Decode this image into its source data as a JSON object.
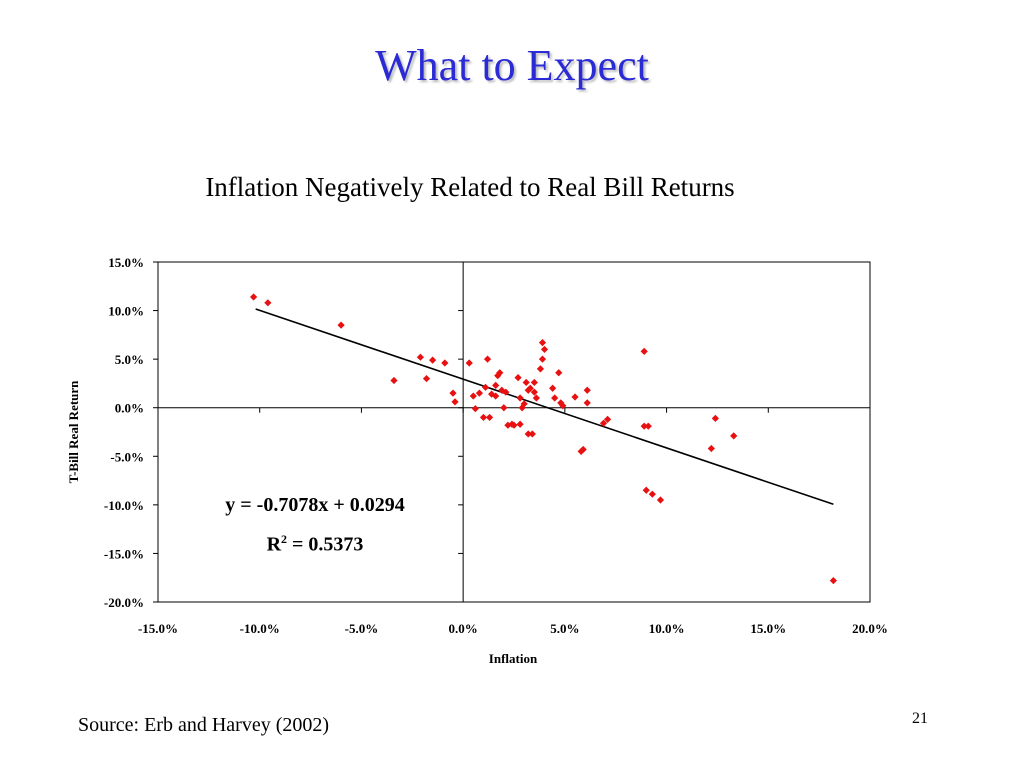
{
  "slide": {
    "title": "What to Expect",
    "source": "Source: Erb and Harvey (2002)",
    "page_number": "21"
  },
  "chart_data": {
    "type": "scatter",
    "title": "Inflation Negatively Related to Real Bill Returns",
    "xlabel": "Inflation",
    "ylabel": "T-Bill Real Return",
    "xlim": [
      -0.15,
      0.2
    ],
    "ylim": [
      -0.2,
      0.15
    ],
    "x_ticks": [
      -0.15,
      -0.1,
      -0.05,
      0.0,
      0.05,
      0.1,
      0.15,
      0.2
    ],
    "x_tick_labels": [
      "-15.0%",
      "-10.0%",
      "-5.0%",
      "0.0%",
      "5.0%",
      "10.0%",
      "15.0%",
      "20.0%"
    ],
    "y_ticks": [
      0.15,
      0.1,
      0.05,
      0.0,
      -0.05,
      -0.1,
      -0.15,
      -0.2
    ],
    "y_tick_labels": [
      "15.0%",
      "10.0%",
      "5.0%",
      "0.0%",
      "-5.0%",
      "-10.0%",
      "-15.0%",
      "-20.0%"
    ],
    "grid": false,
    "marker_color": "#e81010",
    "trendline": {
      "slope": -0.7078,
      "intercept": 0.0294,
      "x_range": [
        -0.102,
        0.182
      ],
      "equation": "y = -0.7078x + 0.0294",
      "r2_prefix": "R",
      "r2_sup": "2",
      "r2_value": " = 0.5373"
    },
    "points": [
      [
        -0.103,
        0.114
      ],
      [
        -0.096,
        0.108
      ],
      [
        -0.06,
        0.085
      ],
      [
        -0.034,
        0.028
      ],
      [
        -0.021,
        0.052
      ],
      [
        -0.018,
        0.03
      ],
      [
        -0.015,
        0.049
      ],
      [
        -0.009,
        0.046
      ],
      [
        -0.005,
        0.015
      ],
      [
        -0.004,
        0.006
      ],
      [
        0.003,
        0.046
      ],
      [
        0.005,
        0.012
      ],
      [
        0.006,
        -0.001
      ],
      [
        0.008,
        0.015
      ],
      [
        0.01,
        -0.01
      ],
      [
        0.011,
        0.021
      ],
      [
        0.012,
        0.05
      ],
      [
        0.013,
        -0.01
      ],
      [
        0.014,
        0.014
      ],
      [
        0.016,
        0.023
      ],
      [
        0.016,
        0.012
      ],
      [
        0.017,
        0.033
      ],
      [
        0.018,
        0.036
      ],
      [
        0.019,
        0.018
      ],
      [
        0.02,
        0.0
      ],
      [
        0.021,
        0.016
      ],
      [
        0.022,
        -0.018
      ],
      [
        0.024,
        -0.017
      ],
      [
        0.025,
        -0.018
      ],
      [
        0.027,
        0.031
      ],
      [
        0.028,
        0.01
      ],
      [
        0.028,
        -0.017
      ],
      [
        0.029,
        0.0
      ],
      [
        0.03,
        0.004
      ],
      [
        0.031,
        0.026
      ],
      [
        0.032,
        0.018
      ],
      [
        0.032,
        -0.027
      ],
      [
        0.033,
        0.02
      ],
      [
        0.034,
        -0.027
      ],
      [
        0.035,
        0.026
      ],
      [
        0.035,
        0.016
      ],
      [
        0.036,
        0.01
      ],
      [
        0.038,
        0.04
      ],
      [
        0.039,
        0.05
      ],
      [
        0.039,
        0.067
      ],
      [
        0.04,
        0.06
      ],
      [
        0.044,
        0.02
      ],
      [
        0.045,
        0.01
      ],
      [
        0.047,
        0.036
      ],
      [
        0.048,
        0.005
      ],
      [
        0.049,
        0.002
      ],
      [
        0.055,
        0.011
      ],
      [
        0.058,
        -0.045
      ],
      [
        0.059,
        -0.043
      ],
      [
        0.061,
        0.005
      ],
      [
        0.061,
        0.018
      ],
      [
        0.069,
        -0.016
      ],
      [
        0.071,
        -0.012
      ],
      [
        0.089,
        0.058
      ],
      [
        0.089,
        -0.019
      ],
      [
        0.09,
        -0.085
      ],
      [
        0.091,
        -0.019
      ],
      [
        0.093,
        -0.089
      ],
      [
        0.097,
        -0.095
      ],
      [
        0.122,
        -0.042
      ],
      [
        0.124,
        -0.011
      ],
      [
        0.133,
        -0.029
      ],
      [
        0.182,
        -0.178
      ]
    ]
  }
}
